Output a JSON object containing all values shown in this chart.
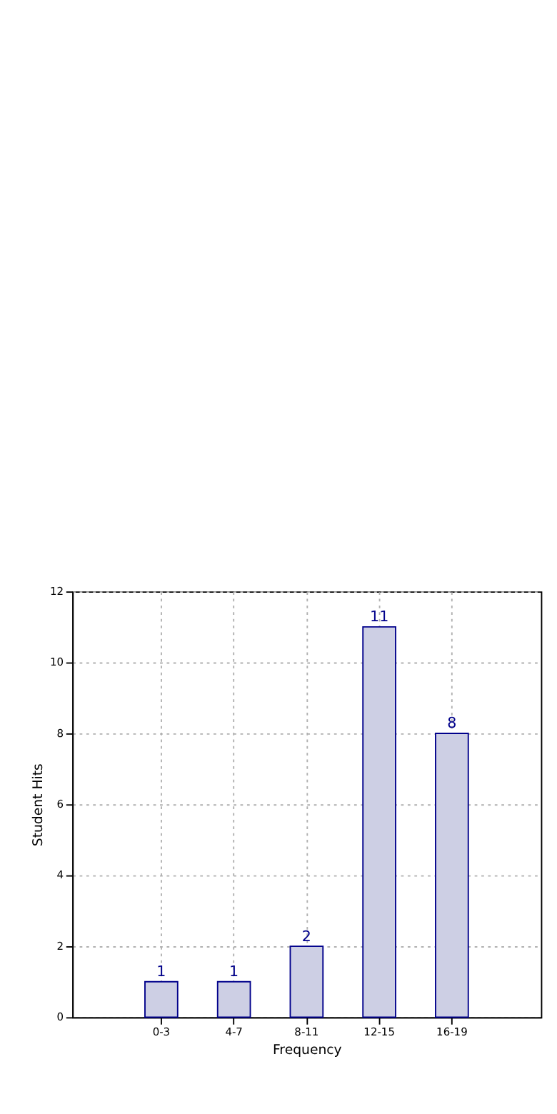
{
  "chart_data": {
    "type": "bar",
    "xlabel": "Frequency",
    "ylabel": "Student Hits",
    "categories": [
      "0-3",
      "4-7",
      "8-11",
      "12-15",
      "16-19"
    ],
    "values": [
      1,
      1,
      2,
      11,
      8
    ],
    "color": "#cdcfe4",
    "ylim": [
      0,
      12
    ],
    "yticks": [
      0,
      2,
      4,
      6,
      8,
      10,
      12
    ],
    "grid": true,
    "data_labels": true
  }
}
